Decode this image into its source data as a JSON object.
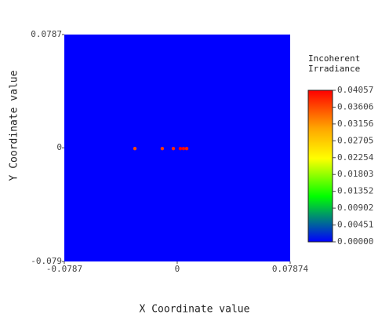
{
  "chart_data": {
    "type": "heatmap",
    "x_label": "X Coordinate value",
    "y_label": "Y Coordinate value",
    "colorbar_title": [
      "Incoherent",
      "Irradiance"
    ],
    "xlim": [
      -0.0787,
      0.07874
    ],
    "ylim": [
      -0.079,
      0.0787
    ],
    "xticks": [
      -0.0787,
      0,
      0.07874
    ],
    "yticks": [
      0.0787,
      0,
      -0.079
    ],
    "background": 0,
    "x": [
      -0.0295,
      -0.0104,
      -0.0027,
      0.0022,
      0.0044,
      0.0066
    ],
    "y": [
      -0.0005,
      -0.0005,
      -0.0005,
      -0.0005,
      -0.0005,
      -0.0005
    ],
    "z": [
      0.036,
      0.037,
      0.038,
      0.04057,
      0.04,
      0.039
    ],
    "clim": [
      0,
      0.04057
    ],
    "colorscale": [
      [
        0,
        "#0000ff"
      ],
      [
        0.3,
        "#00ff00"
      ],
      [
        0.55,
        "#ffff00"
      ],
      [
        0.75,
        "#ffa500"
      ],
      [
        1,
        "#ff0000"
      ]
    ],
    "colorbar_ticks": [
      0.04057,
      0.03606,
      0.03156,
      0.02705,
      0.02254,
      0.01803,
      0.01352,
      0.00902,
      0.00451,
      {
        "value": 0,
        "label": "0.00000"
      }
    ]
  }
}
